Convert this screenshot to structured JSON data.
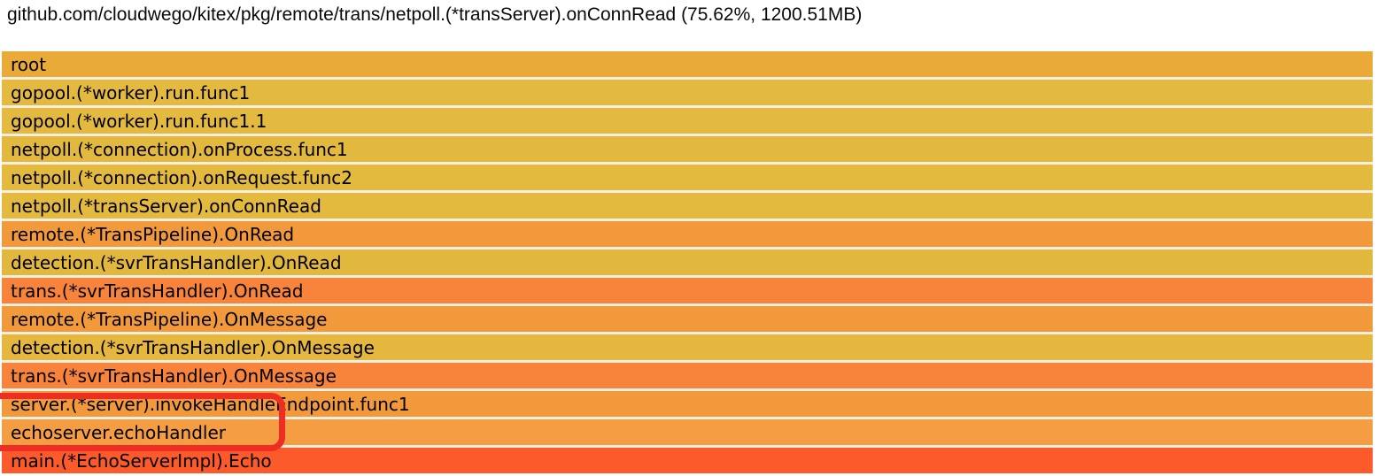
{
  "header": {
    "title": "github.com/cloudwego/kitex/pkg/remote/trans/netpoll.(*transServer).onConnRead (75.62%, 1200.51MB)"
  },
  "flamegraph": {
    "frames": [
      {
        "label": "root",
        "color": "#e9aa38"
      },
      {
        "label": "gopool.(*worker).run.func1",
        "color": "#e4b93f"
      },
      {
        "label": "gopool.(*worker).run.func1.1",
        "color": "#e4b93f"
      },
      {
        "label": "netpoll.(*connection).onProcess.func1",
        "color": "#e2b83e"
      },
      {
        "label": "netpoll.(*connection).onRequest.func2",
        "color": "#e3b93e"
      },
      {
        "label": "netpoll.(*transServer).onConnRead",
        "color": "#e3b93e"
      },
      {
        "label": "remote.(*TransPipeline).OnRead",
        "color": "#f2993c"
      },
      {
        "label": "detection.(*svrTransHandler).OnRead",
        "color": "#e2b73d"
      },
      {
        "label": "trans.(*svrTransHandler).OnRead",
        "color": "#f8833a"
      },
      {
        "label": "remote.(*TransPipeline).OnMessage",
        "color": "#f2993c"
      },
      {
        "label": "detection.(*svrTransHandler).OnMessage",
        "color": "#e5b73e"
      },
      {
        "label": "trans.(*svrTransHandler).OnMessage",
        "color": "#f8833a"
      },
      {
        "label": "server.(*server).invokeHandleEndpoint.func1",
        "color": "#f2993c"
      },
      {
        "label": "echoserver.echoHandler",
        "color": "#f49d42"
      },
      {
        "label": "main.(*EchoServerImpl).Echo",
        "color": "#fd5a2c"
      }
    ],
    "annotation": {
      "color": "#ee2e24",
      "highlighted_frames": [
        "server.(*server).invokeHandleEndpoint.func1",
        "echoserver.echoHandler"
      ]
    }
  },
  "chart_data": {
    "type": "flamegraph",
    "title": "github.com/cloudwego/kitex/pkg/remote/trans/netpoll.(*transServer).onConnRead (75.62%, 1200.51MB)",
    "selected_frame": "github.com/cloudwego/kitex/pkg/remote/trans/netpoll.(*transServer).onConnRead",
    "selected_percent": 75.62,
    "selected_value": "1200.51MB",
    "orientation": "root-at-top",
    "all_frames_full_width": true,
    "stack": [
      "root",
      "gopool.(*worker).run.func1",
      "gopool.(*worker).run.func1.1",
      "netpoll.(*connection).onProcess.func1",
      "netpoll.(*connection).onRequest.func2",
      "netpoll.(*transServer).onConnRead",
      "remote.(*TransPipeline).OnRead",
      "detection.(*svrTransHandler).OnRead",
      "trans.(*svrTransHandler).OnRead",
      "remote.(*TransPipeline).OnMessage",
      "detection.(*svrTransHandler).OnMessage",
      "trans.(*svrTransHandler).OnMessage",
      "server.(*server).invokeHandleEndpoint.func1",
      "echoserver.echoHandler",
      "main.(*EchoServerImpl).Echo"
    ]
  }
}
